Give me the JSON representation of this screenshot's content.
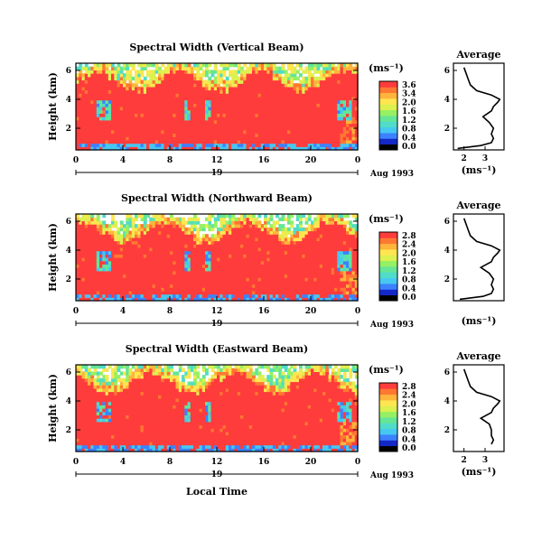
{
  "figure": {
    "time_ticks": [
      "0",
      "4",
      "8",
      "12",
      "16",
      "20",
      "0"
    ],
    "date_label": "19",
    "month_label": "Aug 1993",
    "xlabel": "Local Time",
    "unit_label": "(ms⁻¹)",
    "avg_title": "Average",
    "avg_xlabel": "(ms⁻¹)",
    "ylabel": "Height (km)",
    "colors": [
      "#000000",
      "#1428c8",
      "#3c82ff",
      "#46c8f0",
      "#50dcc8",
      "#64e696",
      "#96f064",
      "#dcf050",
      "#ffe650",
      "#ffb43c",
      "#ff7832",
      "#ff3c3c"
    ]
  },
  "chart_data": [
    {
      "type": "heatmap",
      "title": "Spectral Width (Vertical Beam)",
      "xlim": [
        0,
        24
      ],
      "ylim": [
        0.5,
        6.5
      ],
      "yticks": [
        "2",
        "4",
        "6"
      ],
      "colorbar": {
        "range": [
          0.0,
          3.6
        ],
        "ticks": [
          "3.6",
          "3.4",
          "2.0",
          "1.6",
          "1.2",
          "0.8",
          "0.4",
          "0.0"
        ]
      },
      "average_profile": {
        "title": "Average",
        "xticks": [
          "2",
          "3"
        ],
        "height_km": [
          0.6,
          0.8,
          1.0,
          1.3,
          1.6,
          2.0,
          2.4,
          2.8,
          3.2,
          3.5,
          3.8,
          4.0,
          4.3,
          4.6,
          5.0,
          5.4,
          5.8,
          6.2
        ],
        "width_ms": [
          1.7,
          2.8,
          3.3,
          3.4,
          3.3,
          3.4,
          3.2,
          2.9,
          3.3,
          3.4,
          3.6,
          3.7,
          3.3,
          2.6,
          2.3,
          2.2,
          2.1,
          2.0
        ]
      }
    },
    {
      "type": "heatmap",
      "title": "Spectral Width (Northward Beam)",
      "xlim": [
        0,
        24
      ],
      "ylim": [
        0.5,
        6.5
      ],
      "yticks": [
        "2",
        "4",
        "6"
      ],
      "colorbar": {
        "range": [
          0.0,
          2.8
        ],
        "ticks": [
          "2.8",
          "2.4",
          "2.0",
          "1.6",
          "1.2",
          "0.8",
          "0.4",
          "0.0"
        ]
      },
      "average_profile": {
        "title": "Average",
        "xticks": [],
        "height_km": [
          0.6,
          0.8,
          1.0,
          1.3,
          1.6,
          2.0,
          2.4,
          2.8,
          3.2,
          3.5,
          3.8,
          4.0,
          4.3,
          4.6,
          5.0,
          5.4,
          5.8,
          6.2
        ],
        "width_ms": [
          1.8,
          2.9,
          3.3,
          3.4,
          3.3,
          3.4,
          3.2,
          2.8,
          3.3,
          3.4,
          3.6,
          3.7,
          3.3,
          2.6,
          2.3,
          2.2,
          2.1,
          2.0
        ]
      }
    },
    {
      "type": "heatmap",
      "title": "Spectral Width (Eastward Beam)",
      "xlim": [
        0,
        24
      ],
      "ylim": [
        0.5,
        6.5
      ],
      "yticks": [
        "2",
        "4",
        "6"
      ],
      "colorbar": {
        "range": [
          0.0,
          2.8
        ],
        "ticks": [
          "2.8",
          "2.4",
          "2.0",
          "1.6",
          "1.2",
          "0.8",
          "0.4",
          "0.0"
        ]
      },
      "average_profile": {
        "title": "Average",
        "xticks": [
          "2",
          "3"
        ],
        "height_km": [
          1.0,
          1.3,
          1.6,
          2.0,
          2.4,
          2.8,
          3.2,
          3.5,
          3.8,
          4.0,
          4.3,
          4.6,
          5.0,
          5.4,
          5.8,
          6.2
        ],
        "width_ms": [
          3.3,
          3.4,
          3.3,
          3.3,
          3.2,
          2.8,
          3.3,
          3.4,
          3.6,
          3.7,
          3.3,
          2.6,
          2.3,
          2.2,
          2.1,
          2.0
        ]
      }
    }
  ]
}
